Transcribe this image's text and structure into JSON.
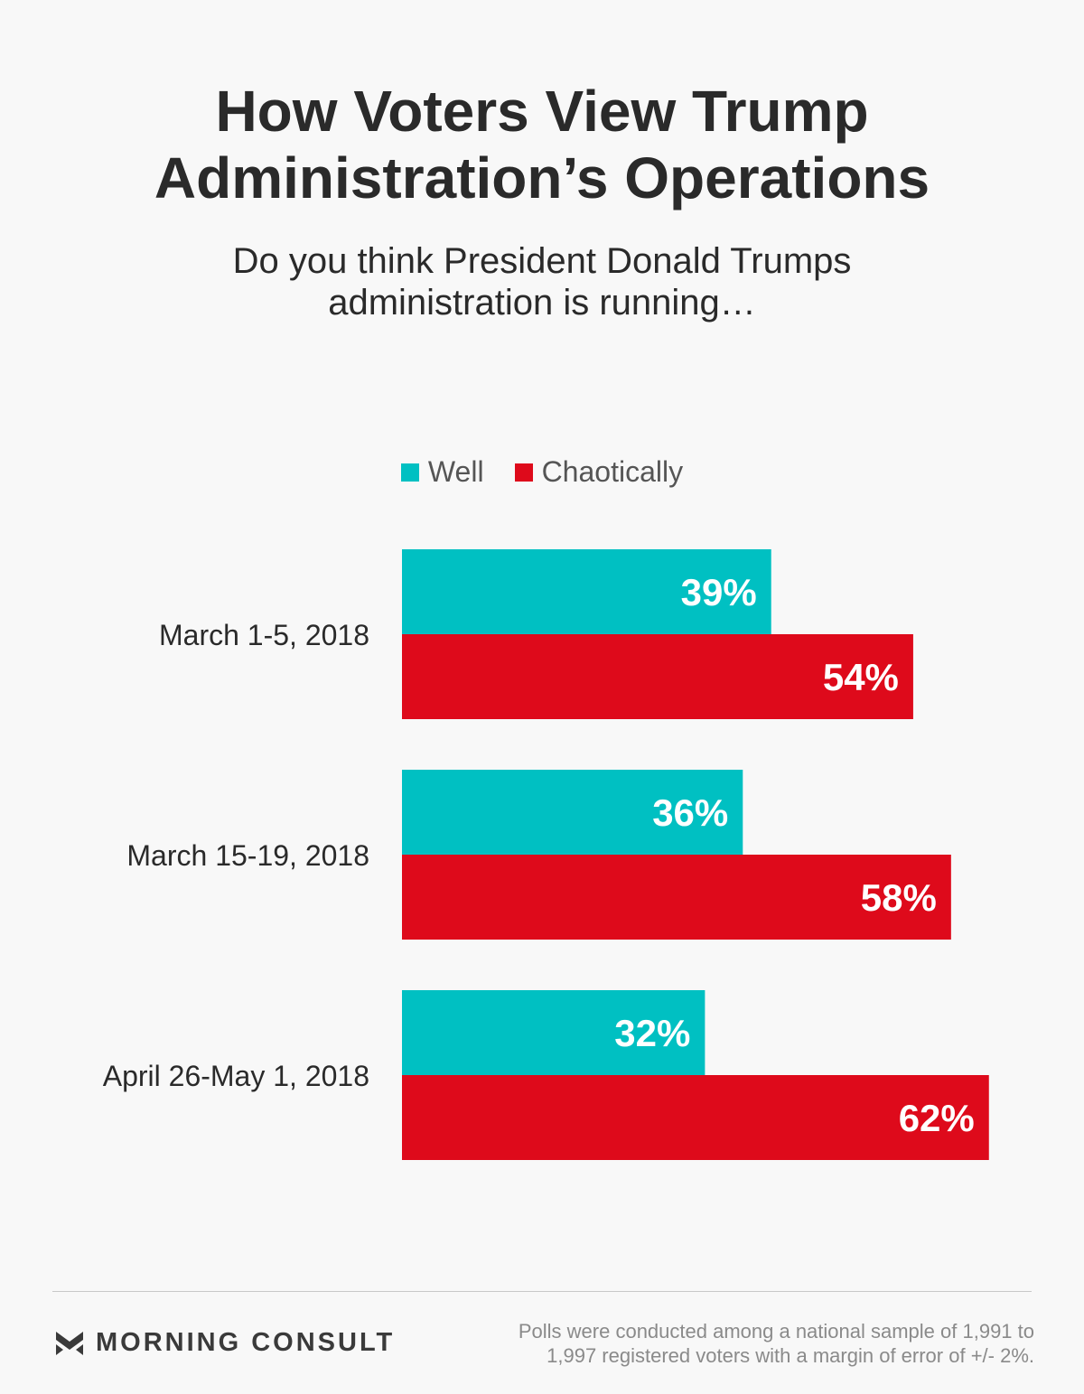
{
  "title_lines": [
    "How Voters View Trump",
    "Administration’s Operations"
  ],
  "subtitle_lines": [
    "Do you think President Donald Trumps",
    "administration is running…"
  ],
  "colors": {
    "well": "#00c0c2",
    "chaotically": "#de0a1b"
  },
  "chart_data": {
    "type": "bar",
    "orientation": "horizontal",
    "categories": [
      "March 1-5, 2018",
      "March 15-19, 2018",
      "April 26-May 1, 2018"
    ],
    "series": [
      {
        "name": "Well",
        "values": [
          39,
          36,
          32
        ],
        "labels": [
          "39%",
          "36%",
          "32%"
        ]
      },
      {
        "name": "Chaotically",
        "values": [
          54,
          58,
          62
        ],
        "labels": [
          "54%",
          "58%",
          "62%"
        ]
      }
    ],
    "xlim": [
      0,
      100
    ],
    "legend": "top-center",
    "grid": false
  },
  "footer": {
    "brand": "MORNING CONSULT",
    "brand_icon": "morning-consult-chevron-icon",
    "note_lines": [
      "Polls were conducted among a national sample of 1,991 to",
      "1,997 registered voters with a margin of error of +/- 2%."
    ]
  }
}
